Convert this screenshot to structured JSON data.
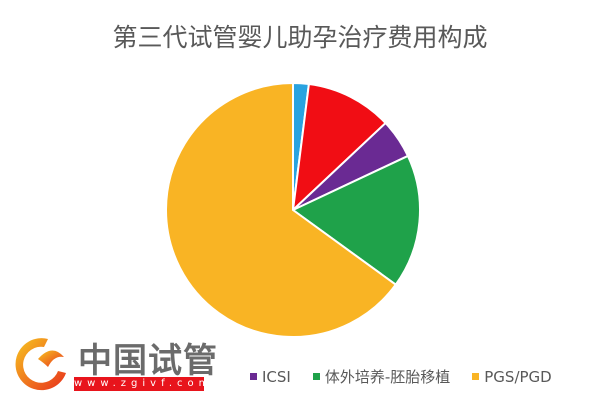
{
  "chart_data": {
    "type": "pie",
    "title": "第三代试管婴儿助孕治疗费用构成",
    "slices": [
      {
        "label": "",
        "value": 2,
        "color": "#29a3e0"
      },
      {
        "label": "",
        "value": 11,
        "color": "#f10d14"
      },
      {
        "label": "ICSI",
        "value": 5,
        "color": "#6a2a93"
      },
      {
        "label": "体外培养-胚胎移植",
        "value": 17,
        "color": "#1fa24a"
      },
      {
        "label": "PGS/PGD",
        "value": 65,
        "color": "#f9b424"
      }
    ],
    "start_angle": "top, clockwise",
    "legend_placement": "bottom",
    "legend": [
      {
        "label": "ICSI",
        "color": "#6a2a93"
      },
      {
        "label": "体外培养-胚胎移植",
        "color": "#1fa24a"
      },
      {
        "label": "PGS/PGD",
        "color": "#f9b424"
      }
    ]
  },
  "watermark": {
    "name": "中国试管",
    "url": "www.zgivf.com"
  }
}
